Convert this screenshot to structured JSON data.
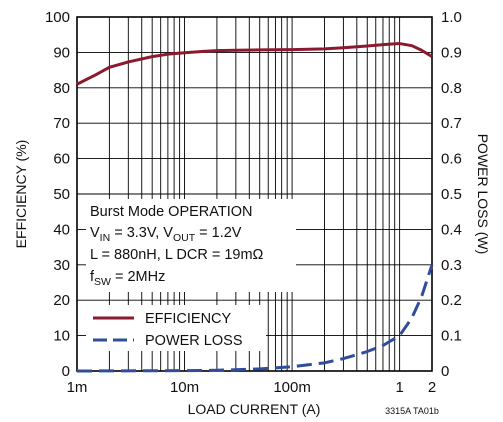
{
  "chart_data": {
    "type": "line",
    "xlabel": "LOAD CURRENT (A)",
    "ylabel_left": "EFFICIENCY (%)",
    "ylabel_right": "POWER LOSS (W)",
    "x_scale": "log",
    "xlim": [
      0.001,
      2
    ],
    "ylim_left": [
      0,
      100
    ],
    "ylim_right": [
      0,
      1.0
    ],
    "x_ticks": [
      {
        "value": 0.001,
        "label": "1m"
      },
      {
        "value": 0.01,
        "label": "10m"
      },
      {
        "value": 0.1,
        "label": "100m"
      },
      {
        "value": 1,
        "label": "1"
      },
      {
        "value": 2,
        "label": "2"
      }
    ],
    "y_ticks_left": [
      "0",
      "10",
      "20",
      "30",
      "40",
      "50",
      "60",
      "70",
      "80",
      "90",
      "100"
    ],
    "y_ticks_right": [
      "0",
      "0.1",
      "0.2",
      "0.3",
      "0.4",
      "0.5",
      "0.6",
      "0.7",
      "0.8",
      "0.9",
      "1.0"
    ],
    "grid": true,
    "series": [
      {
        "name": "EFFICIENCY",
        "axis": "left",
        "color": "#8b1a2e",
        "style": "solid",
        "x": [
          0.001,
          0.0015,
          0.002,
          0.003,
          0.005,
          0.007,
          0.01,
          0.015,
          0.02,
          0.03,
          0.05,
          0.1,
          0.2,
          0.3,
          0.5,
          0.7,
          1.0,
          1.3,
          1.6,
          2.0
        ],
        "y": [
          81,
          83.7,
          85.8,
          87.3,
          88.8,
          89.5,
          89.9,
          90.3,
          90.5,
          90.6,
          90.7,
          90.8,
          91.0,
          91.3,
          91.8,
          92.2,
          92.5,
          91.9,
          90.6,
          88.8
        ]
      },
      {
        "name": "POWER LOSS",
        "axis": "right",
        "color": "#2f4d9a",
        "style": "dashed",
        "x": [
          0.001,
          0.003,
          0.01,
          0.02,
          0.05,
          0.1,
          0.2,
          0.3,
          0.5,
          0.7,
          1.0,
          1.3,
          1.6,
          2.0
        ],
        "y": [
          0,
          0.0005,
          0.001,
          0.002,
          0.006,
          0.012,
          0.023,
          0.035,
          0.055,
          0.072,
          0.1,
          0.15,
          0.21,
          0.3
        ]
      }
    ],
    "annotation_lines": [
      "Burst Mode OPERATION",
      "V_IN = 3.3V, V_OUT = 1.2V",
      "L = 880nH, L DCR = 19mΩ",
      "f_SW = 2MHz"
    ],
    "legend_position": "bottom-left",
    "figure_id": "3315A TA01b"
  },
  "annotation": {
    "line1": "Burst Mode OPERATION",
    "line2_v": "V",
    "line2_in": "IN",
    "line2_mid": " = 3.3V, V",
    "line2_out": "OUT",
    "line2_end": " = 1.2V",
    "line3": "L = 880nH, L DCR = 19mΩ",
    "line4_f": "f",
    "line4_sw": "SW",
    "line4_end": " = 2MHz"
  }
}
